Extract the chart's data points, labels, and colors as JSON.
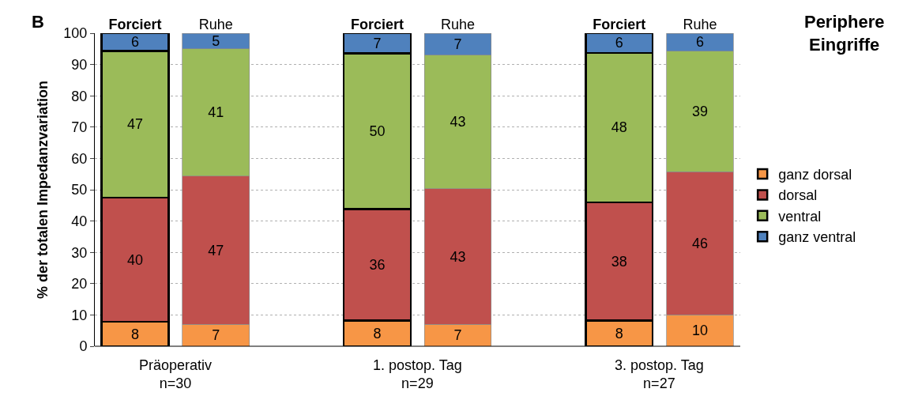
{
  "chart_data": {
    "type": "bar",
    "stacked": true,
    "title": "Periphere Eingriffe",
    "ylabel": "% der totalen Impedanzvariation",
    "categories": [
      "Forciert",
      "Ruhe",
      null,
      "Forciert",
      "Ruhe",
      null,
      "Forciert",
      "Ruhe"
    ],
    "series": [
      {
        "name": "ganz dorsal",
        "color": "#f79646",
        "values": [
          7.8,
          7,
          null,
          8.2,
          7,
          null,
          8.2,
          10
        ],
        "value_labels": [
          "8",
          "7",
          null,
          "8",
          "7",
          null,
          "8",
          "10"
        ]
      },
      {
        "name": "dorsal",
        "color": "#c0504d",
        "values": [
          39.7,
          47.3,
          null,
          35.6,
          43.3,
          null,
          37.8,
          45.7
        ],
        "value_labels": [
          "40",
          "47",
          null,
          "36",
          "43",
          null,
          "38",
          "46"
        ]
      },
      {
        "name": "ventral",
        "color": "#9bbb59",
        "values": [
          46.8,
          40.7,
          null,
          49.7,
          42.7,
          null,
          47.7,
          38.6
        ],
        "value_labels": [
          "47",
          "41",
          null,
          "50",
          "43",
          null,
          "48",
          "39"
        ]
      },
      {
        "name": "ganz ventral",
        "color": "#4f81bd",
        "values": [
          5.7,
          5,
          null,
          6.5,
          7,
          null,
          6.3,
          5.6
        ],
        "value_labels": [
          "6",
          "5",
          null,
          "7",
          "7",
          null,
          "6",
          "6"
        ]
      }
    ],
    "ylim": [
      0,
      100
    ],
    "yticks": [
      0,
      10,
      20,
      30,
      40,
      50,
      60,
      70,
      80,
      90,
      100
    ],
    "grid": "y",
    "legend": "right",
    "annotations": [
      "B",
      "Präoperativ\nn=30",
      "1. postop. Tag\nn=29",
      "3. postop. Tag\nn=27"
    ]
  }
}
